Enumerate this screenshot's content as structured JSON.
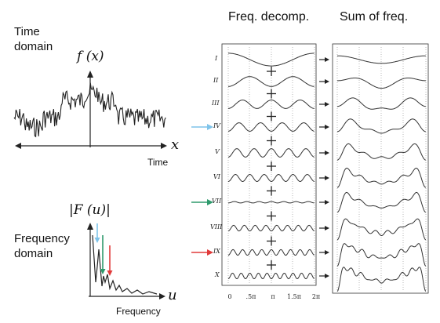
{
  "left": {
    "time_domain_line1": "Time",
    "time_domain_line2": "domain",
    "fx_label": "f (x)",
    "x_axis_var": "x",
    "time_label": "Time",
    "Fu_label": "|F (u)|",
    "freq_domain_line1": "Frequency",
    "freq_domain_line2": "domain",
    "u_axis_var": "u",
    "frequency_label": "Frequency"
  },
  "right": {
    "header_decomp": "Freq. decomp.",
    "header_sum": "Sum of freq.",
    "row_labels": [
      "I",
      "II",
      "III",
      "IV",
      "V",
      "VI",
      "VII",
      "VIII",
      "IX",
      "X"
    ],
    "plus_sign": "+",
    "axis_ticks": [
      "0",
      ".5π",
      "π",
      "1.5π",
      "2π"
    ]
  },
  "colors": {
    "arrow_blue": "#7fc4ea",
    "arrow_green": "#2e9a6c",
    "arrow_red": "#e03a3a",
    "ink": "#222222"
  }
}
